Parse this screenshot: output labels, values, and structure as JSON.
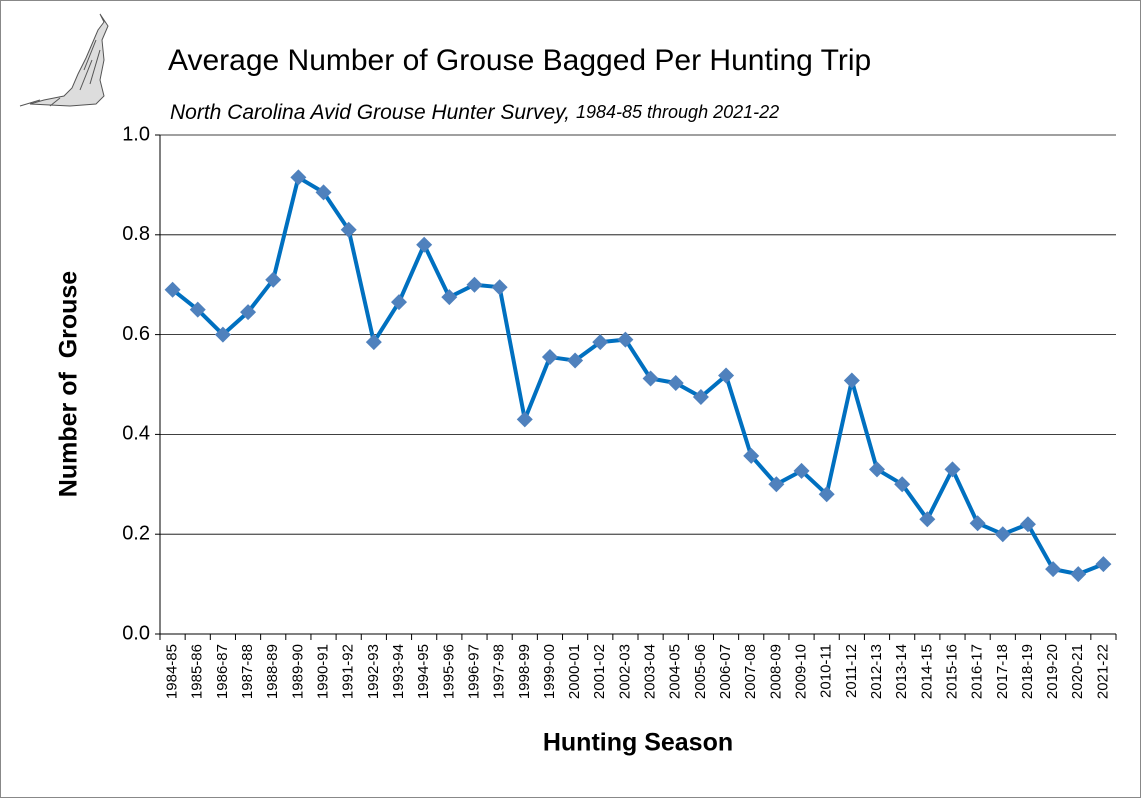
{
  "chart_data": {
    "type": "line",
    "title": "Average Number of Grouse Bagged Per Hunting Trip",
    "subtitle": "North Carolina Avid Grouse Hunter Survey,",
    "subtitle_range": "1984-85 through 2021-22",
    "x_label": "Hunting Season",
    "y_label": "Number of  Grouse",
    "categories": [
      "1984-85",
      "1985-86",
      "1986-87",
      "1987-88",
      "1988-89",
      "1989-90",
      "1990-91",
      "1991-92",
      "1992-93",
      "1993-94",
      "1994-95",
      "1995-96",
      "1996-97",
      "1997-98",
      "1998-99",
      "1999-00",
      "2000-01",
      "2001-02",
      "2002-03",
      "2003-04",
      "2004-05",
      "2005-06",
      "2006-07",
      "2007-08",
      "2008-09",
      "2009-10",
      "2010-11",
      "2011-12",
      "2012-13",
      "2013-14",
      "2014-15",
      "2015-16",
      "2016-17",
      "2017-18",
      "2018-19",
      "2019-20",
      "2020-21",
      "2021-22"
    ],
    "series": [
      {
        "color": "#0070c0",
        "marker_color": "#4f81bd",
        "values": [
          0.69,
          0.65,
          0.6,
          0.645,
          0.71,
          0.915,
          0.885,
          0.81,
          0.585,
          0.665,
          0.78,
          0.675,
          0.7,
          0.695,
          0.43,
          0.555,
          0.548,
          0.585,
          0.59,
          0.512,
          0.503,
          0.475,
          0.518,
          0.357,
          0.3,
          0.327,
          0.28,
          0.508,
          0.33,
          0.3,
          0.23,
          0.33,
          0.222,
          0.2,
          0.22,
          0.13,
          0.12,
          0.14
        ]
      }
    ],
    "ylim": [
      0,
      1
    ],
    "yticks": [
      {
        "value": 0,
        "label": "0.0"
      },
      0.2,
      0.4,
      0.6,
      0.8,
      {
        "value": 1,
        "label": "1.0"
      }
    ],
    "grid": true
  }
}
